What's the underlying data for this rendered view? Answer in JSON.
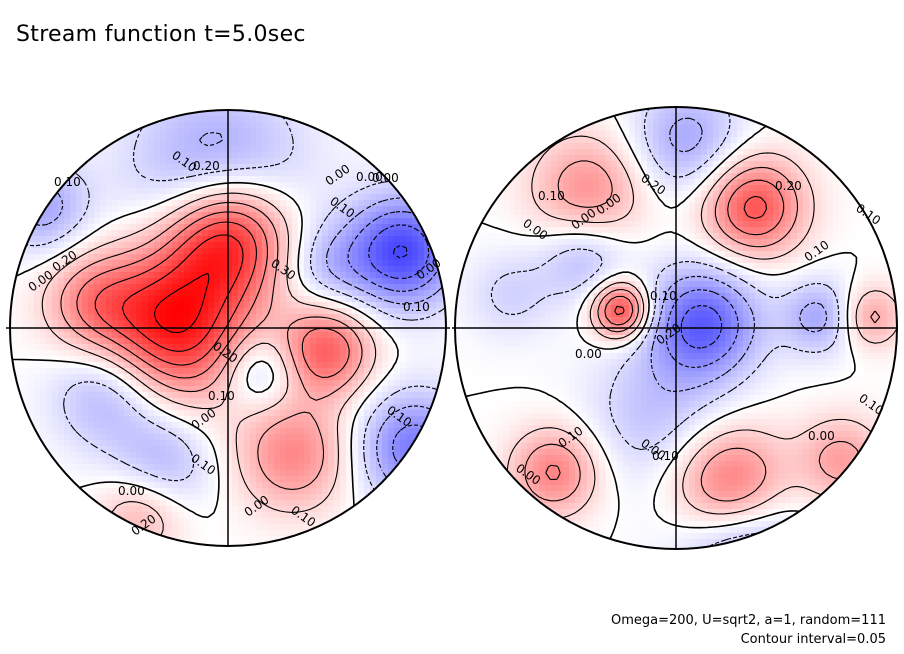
{
  "title": "Stream function t=5.0sec",
  "notes": [
    "Omega=200, U=sqrt2, a=1, random=111",
    "Contour interval=0.05"
  ],
  "colors": {
    "positive": "#ff0000",
    "negative": "#1a1aff",
    "zero": "#ffffff",
    "line": "#000000"
  },
  "chart_data": {
    "type": "heatmap",
    "title": "Stream function t=5.0sec",
    "contour_interval": 0.05,
    "hemispheres": [
      {
        "name": "",
        "contour_labels": [
          "0.10",
          "0.20",
          "0.00",
          "0.10",
          "0.00",
          "0.20",
          "0.30",
          "0.10",
          "0.00",
          "0.20",
          "0.10",
          "0.00",
          "0.10",
          "0.00",
          "0.00",
          "0.10",
          "0.10",
          "0.00",
          "0.10",
          "0.00",
          "0.20"
        ],
        "extrema": [
          {
            "lon": 0.0,
            "lat": 0.42,
            "amp": 0.3,
            "w": 0.2
          },
          {
            "lon": -0.25,
            "lat": 0.02,
            "amp": 0.3,
            "w": 0.24
          },
          {
            "lon": 0.45,
            "lat": -0.1,
            "amp": 0.2,
            "w": 0.15
          },
          {
            "lon": -0.62,
            "lat": 0.12,
            "amp": 0.12,
            "w": 0.16
          },
          {
            "lon": 0.3,
            "lat": -0.58,
            "amp": 0.15,
            "w": 0.18
          },
          {
            "lon": -0.4,
            "lat": -0.85,
            "amp": 0.1,
            "w": 0.14
          },
          {
            "lon": 0.8,
            "lat": 0.35,
            "amp": -0.25,
            "w": 0.18
          },
          {
            "lon": -0.05,
            "lat": 0.7,
            "amp": -0.15,
            "w": 0.28
          },
          {
            "lon": -0.55,
            "lat": -0.3,
            "amp": -0.12,
            "w": 0.18
          },
          {
            "lon": 0.15,
            "lat": -0.2,
            "amp": -0.1,
            "w": 0.12
          },
          {
            "lon": 0.45,
            "lat": 0.28,
            "amp": -0.08,
            "w": 0.14
          },
          {
            "lon": -0.85,
            "lat": 0.55,
            "amp": -0.12,
            "w": 0.15
          },
          {
            "lon": 0.85,
            "lat": -0.55,
            "amp": -0.18,
            "w": 0.18
          },
          {
            "lon": -0.3,
            "lat": -0.62,
            "amp": -0.1,
            "w": 0.16
          }
        ]
      },
      {
        "name": "",
        "contour_labels": [
          "0.00",
          "0.10",
          "0.00",
          "0.20",
          "0.20",
          "0.10",
          "0.10",
          "0.00",
          "0.20",
          "0.00",
          "0.10",
          "0.10",
          "0.00",
          "0.10",
          "0.00",
          "0.10",
          "0.00"
        ],
        "extrema": [
          {
            "lon": -0.25,
            "lat": 0.08,
            "amp": 0.25,
            "w": 0.09
          },
          {
            "lon": 0.35,
            "lat": 0.55,
            "amp": 0.22,
            "w": 0.16
          },
          {
            "lon": -0.4,
            "lat": 0.62,
            "amp": 0.14,
            "w": 0.18
          },
          {
            "lon": 0.25,
            "lat": -0.72,
            "amp": 0.22,
            "w": 0.18
          },
          {
            "lon": -0.55,
            "lat": -0.65,
            "amp": 0.16,
            "w": 0.14
          },
          {
            "lon": 0.88,
            "lat": 0.05,
            "amp": 0.12,
            "w": 0.1
          },
          {
            "lon": 0.75,
            "lat": -0.6,
            "amp": 0.12,
            "w": 0.14
          },
          {
            "lon": 0.12,
            "lat": 0.02,
            "amp": -0.22,
            "w": 0.18
          },
          {
            "lon": -0.42,
            "lat": 0.32,
            "amp": -0.1,
            "w": 0.14
          },
          {
            "lon": 0.65,
            "lat": 0.05,
            "amp": -0.12,
            "w": 0.12
          },
          {
            "lon": 0.05,
            "lat": 0.85,
            "amp": -0.12,
            "w": 0.18
          },
          {
            "lon": -0.1,
            "lat": -0.4,
            "amp": -0.08,
            "w": 0.22
          },
          {
            "lon": 0.3,
            "lat": -0.95,
            "amp": -0.15,
            "w": 0.2
          },
          {
            "lon": -0.75,
            "lat": 0.15,
            "amp": -0.06,
            "w": 0.14
          }
        ]
      }
    ]
  }
}
